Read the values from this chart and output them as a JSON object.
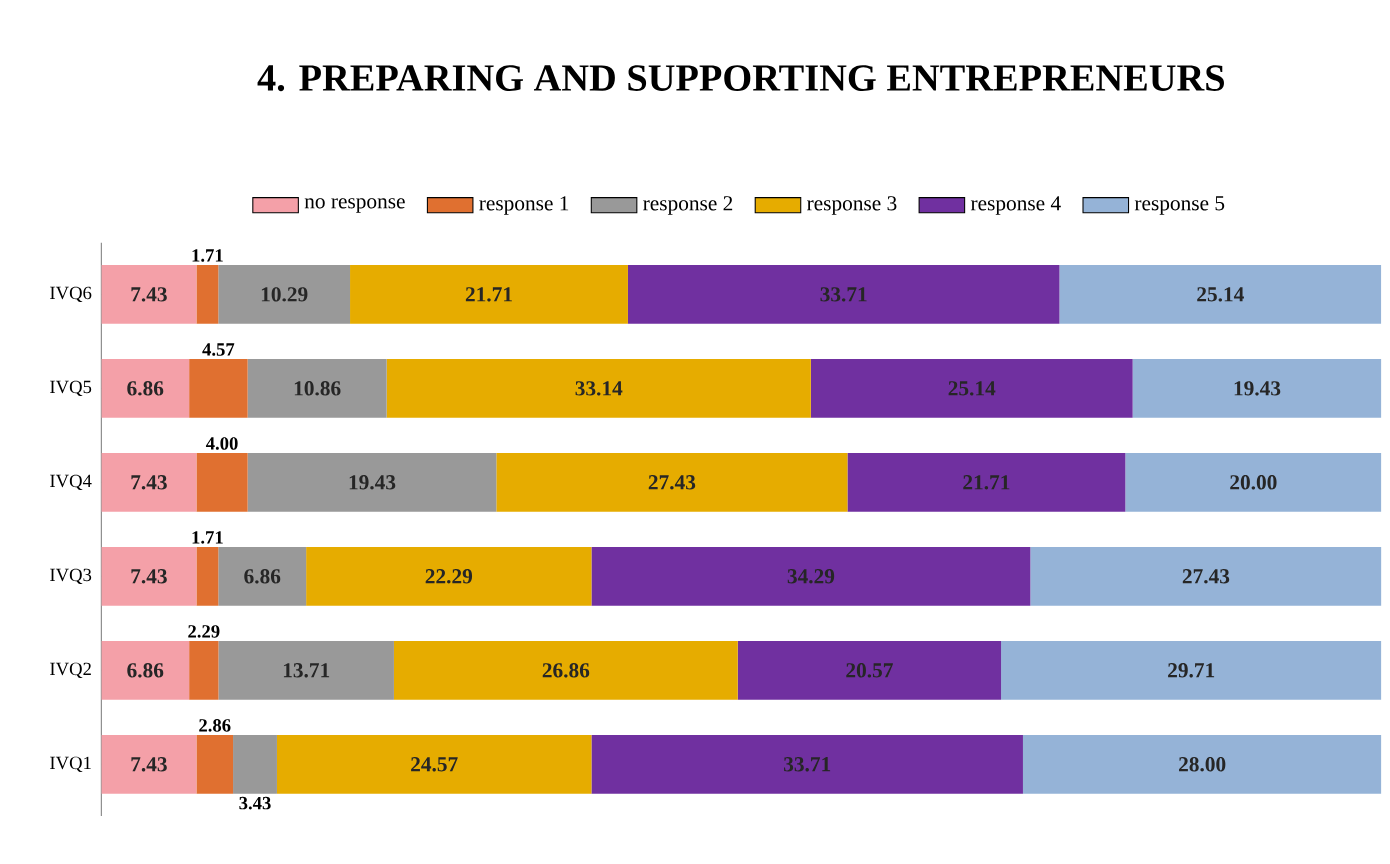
{
  "chart_data": {
    "type": "bar",
    "orientation": "horizontal",
    "stacked": true,
    "title": "4. PREPARING AND SUPPORTING ENTREPRENEURS",
    "categories": [
      "IVQ6",
      "IVQ5",
      "IVQ4",
      "IVQ3",
      "IVQ2",
      "IVQ1"
    ],
    "xlim": [
      0,
      100
    ],
    "tick_labels": "y",
    "legend": "top",
    "series": [
      {
        "name": "no response",
        "color": "#f4a0a8",
        "values": [
          7.43,
          6.86,
          7.43,
          7.43,
          6.86,
          7.43
        ],
        "value_labels": [
          "7.43",
          "6.86",
          "7.43",
          "7.43",
          "6.86",
          "7.43"
        ]
      },
      {
        "name": "response 1",
        "color": "#e07030",
        "values": [
          1.71,
          4.57,
          4.0,
          1.71,
          2.29,
          2.86
        ],
        "value_labels": [
          "1.71",
          "4.57",
          "4.00",
          "1.71",
          "2.29",
          "2.86"
        ]
      },
      {
        "name": "response 2",
        "color": "#999999",
        "values": [
          10.29,
          10.86,
          19.43,
          6.86,
          13.71,
          3.43
        ],
        "value_labels": [
          "10.29",
          "10.86",
          "19.43",
          "6.86",
          "13.71",
          "3.43"
        ]
      },
      {
        "name": "response 3",
        "color": "#e6ac00",
        "values": [
          21.71,
          33.14,
          27.43,
          22.29,
          26.86,
          24.57
        ],
        "value_labels": [
          "21.71",
          "33.14",
          "27.43",
          "22.29",
          "26.86",
          "24.57"
        ]
      },
      {
        "name": "response 4",
        "color": "#7030a0",
        "values": [
          33.71,
          25.14,
          21.71,
          34.29,
          20.57,
          33.71
        ],
        "value_labels": [
          "33.71",
          "25.14",
          "21.71",
          "34.29",
          "20.57",
          "33.71"
        ]
      },
      {
        "name": "response 5",
        "color": "#95b3d7",
        "values": [
          25.14,
          19.43,
          20.0,
          27.43,
          29.71,
          28.0
        ],
        "value_labels": [
          "25.14",
          "19.43",
          "20.00",
          "27.43",
          "29.71",
          "28.00"
        ]
      }
    ]
  }
}
